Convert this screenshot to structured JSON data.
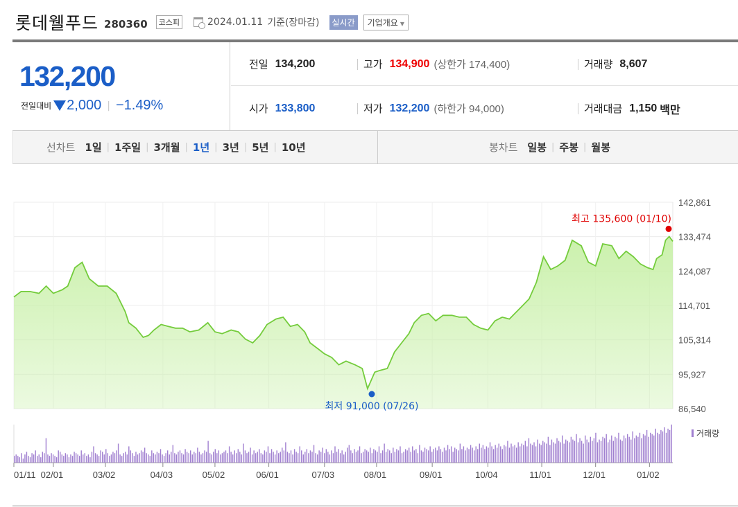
{
  "header": {
    "company": "롯데웰푸드",
    "code": "280360",
    "market": "코스피",
    "date": "2024.01.11",
    "date_suffix": "기준(장마감)",
    "realtime": "실시간",
    "overview": "기업개요"
  },
  "quote": {
    "price": "132,200",
    "change_label": "전일대비",
    "change": "2,000",
    "change_pct": "−1.49%",
    "prev_close_label": "전일",
    "prev_close": "134,200",
    "high_label": "고가",
    "high": "134,900",
    "upper_limit": "(상한가 174,400)",
    "volume_label": "거래량",
    "volume": "8,607",
    "open_label": "시가",
    "open": "133,800",
    "low_label": "저가",
    "low": "132,200",
    "lower_limit": "(하한가 94,000)",
    "amount_label": "거래대금",
    "amount": "1,150",
    "amount_unit": "백만",
    "colors": {
      "up": "#e00000",
      "down": "#1b5ec7"
    }
  },
  "tabs": {
    "line_title": "선차트",
    "line_periods": [
      "1일",
      "1주일",
      "3개월",
      "1년",
      "3년",
      "5년",
      "10년"
    ],
    "active_period": "1년",
    "candle_title": "봉차트",
    "candle_periods": [
      "일봉",
      "주봉",
      "월봉"
    ]
  },
  "chart_data": {
    "type": "area",
    "y_ticks": [
      "142,861",
      "133,474",
      "124,087",
      "114,701",
      "105,314",
      "95,927",
      "86,540"
    ],
    "ylim": [
      86540,
      142861
    ],
    "x_ticks": [
      "01/11",
      "02/01",
      "03/02",
      "04/03",
      "05/02",
      "06/01",
      "07/03",
      "08/01",
      "09/01",
      "10/04",
      "11/01",
      "12/01",
      "01/02"
    ],
    "high_label": "최고 135,600 (01/10)",
    "low_label": "최저 91,000 (07/26)",
    "volume_label": "거래량",
    "line_color": "#74cc3c",
    "fill_color": "#c8f0a8",
    "volume_color": "#a07fd0",
    "high_color": "#e00000",
    "low_color": "#1b5ec7",
    "price_points": [
      [
        0,
        117000
      ],
      [
        4,
        118500
      ],
      [
        9,
        118500
      ],
      [
        14,
        118000
      ],
      [
        18,
        120000
      ],
      [
        22,
        118000
      ],
      [
        27,
        119000
      ],
      [
        30,
        120000
      ],
      [
        34,
        125000
      ],
      [
        38,
        126500
      ],
      [
        42,
        122000
      ],
      [
        47,
        120000
      ],
      [
        52,
        120000
      ],
      [
        57,
        118000
      ],
      [
        62,
        113000
      ],
      [
        64,
        110000
      ],
      [
        68,
        108500
      ],
      [
        72,
        106000
      ],
      [
        75,
        106500
      ],
      [
        78,
        108000
      ],
      [
        82,
        109500
      ],
      [
        86,
        109000
      ],
      [
        90,
        108500
      ],
      [
        94,
        108500
      ],
      [
        98,
        107500
      ],
      [
        103,
        108000
      ],
      [
        108,
        110000
      ],
      [
        112,
        107500
      ],
      [
        116,
        107000
      ],
      [
        121,
        108000
      ],
      [
        125,
        107500
      ],
      [
        129,
        105500
      ],
      [
        133,
        104500
      ],
      [
        137,
        106500
      ],
      [
        141,
        109500
      ],
      [
        146,
        111000
      ],
      [
        150,
        111500
      ],
      [
        154,
        109000
      ],
      [
        158,
        109500
      ],
      [
        162,
        107500
      ],
      [
        165,
        104500
      ],
      [
        169,
        103000
      ],
      [
        173,
        101500
      ],
      [
        177,
        100500
      ],
      [
        181,
        98500
      ],
      [
        185,
        99500
      ],
      [
        190,
        98500
      ],
      [
        194,
        97500
      ],
      [
        197,
        92000
      ],
      [
        201,
        96500
      ],
      [
        204,
        97000
      ],
      [
        208,
        97500
      ],
      [
        212,
        102000
      ],
      [
        216,
        104500
      ],
      [
        220,
        107000
      ],
      [
        223,
        110000
      ],
      [
        227,
        112000
      ],
      [
        231,
        112500
      ],
      [
        235,
        110500
      ],
      [
        239,
        112000
      ],
      [
        244,
        112000
      ],
      [
        248,
        111500
      ],
      [
        252,
        111500
      ],
      [
        256,
        109500
      ],
      [
        260,
        108500
      ],
      [
        264,
        108000
      ],
      [
        268,
        110500
      ],
      [
        272,
        111500
      ],
      [
        276,
        111000
      ],
      [
        279,
        112500
      ],
      [
        283,
        114500
      ],
      [
        287,
        116500
      ],
      [
        291,
        121000
      ],
      [
        295,
        128000
      ],
      [
        299,
        124500
      ],
      [
        303,
        125500
      ],
      [
        307,
        127000
      ],
      [
        311,
        132500
      ],
      [
        316,
        131000
      ],
      [
        320,
        126500
      ],
      [
        324,
        125500
      ],
      [
        328,
        131500
      ],
      [
        333,
        131000
      ],
      [
        337,
        127500
      ],
      [
        341,
        129500
      ],
      [
        345,
        128000
      ],
      [
        349,
        126000
      ],
      [
        353,
        125000
      ],
      [
        356,
        124500
      ],
      [
        358,
        127500
      ],
      [
        361,
        128500
      ],
      [
        363,
        132500
      ],
      [
        365,
        133500
      ],
      [
        367,
        132200
      ]
    ],
    "price_last_index": 367,
    "volume_values": [
      5,
      6,
      5,
      4,
      7,
      3,
      6,
      8,
      5,
      4,
      7,
      6,
      9,
      5,
      6,
      4,
      8,
      7,
      18,
      6,
      5,
      7,
      6,
      5,
      4,
      9,
      8,
      6,
      5,
      7,
      6,
      4,
      6,
      5,
      8,
      7,
      6,
      5,
      9,
      6,
      7,
      5,
      6,
      4,
      8,
      12,
      7,
      6,
      5,
      9,
      8,
      6,
      10,
      7,
      5,
      6,
      8,
      7,
      9,
      14,
      6,
      5,
      7,
      8,
      6,
      12,
      9,
      7,
      5,
      8,
      6,
      7,
      9,
      8,
      11,
      7,
      6,
      5,
      9,
      7,
      6,
      8,
      7,
      10,
      6,
      5,
      7,
      9,
      6,
      8,
      13,
      7,
      6,
      8,
      9,
      7,
      6,
      10,
      8,
      7,
      9,
      6,
      8,
      7,
      11,
      8,
      6,
      7,
      9,
      8,
      16,
      7,
      6,
      8,
      10,
      7,
      9,
      6,
      7,
      8,
      9,
      7,
      12,
      8,
      6,
      9,
      7,
      10,
      8,
      6,
      14,
      9,
      7,
      8,
      11,
      6,
      9,
      7,
      8,
      10,
      7,
      6,
      9,
      8,
      12,
      7,
      10,
      8,
      6,
      9,
      7,
      8,
      11,
      9,
      15,
      8,
      7,
      9,
      6,
      10,
      8,
      7,
      12,
      9,
      6,
      8,
      10,
      7,
      9,
      8,
      13,
      7,
      6,
      9,
      8,
      11,
      7,
      10,
      8,
      6,
      9,
      7,
      12,
      8,
      10,
      7,
      9,
      6,
      8,
      11,
      13,
      9,
      7,
      10,
      8,
      9,
      12,
      7,
      8,
      10,
      9,
      8,
      11,
      7,
      10,
      9,
      8,
      12,
      7,
      9,
      14,
      8,
      10,
      9,
      7,
      11,
      8,
      10,
      9,
      12,
      7,
      8,
      10,
      9,
      11,
      8,
      12,
      9,
      10,
      7,
      13,
      9,
      8,
      11,
      10,
      9,
      12,
      8,
      10,
      11,
      9,
      12,
      10,
      8,
      11,
      9,
      13,
      10,
      12,
      8,
      11,
      10,
      9,
      14,
      10,
      12,
      9,
      11,
      10,
      13,
      11,
      9,
      12,
      10,
      14,
      11,
      13,
      10,
      12,
      11,
      15,
      12,
      10,
      13,
      11,
      14,
      12,
      10,
      13,
      12,
      16,
      11,
      14,
      12,
      13,
      11,
      15,
      12,
      14,
      13,
      16,
      12,
      18,
      14,
      13,
      15,
      12,
      17,
      14,
      13,
      16,
      15,
      14,
      19,
      13,
      17,
      15,
      14,
      18,
      16,
      15,
      20,
      14,
      17,
      16,
      15,
      19,
      17,
      16,
      21,
      15,
      18,
      16,
      14,
      20,
      17,
      15,
      19,
      16,
      18,
      22,
      15,
      17,
      16,
      19,
      18,
      21,
      15,
      17,
      20,
      16,
      19,
      18,
      22,
      17,
      16,
      20,
      18,
      21,
      19,
      17,
      23,
      18,
      20,
      19,
      22,
      18,
      21,
      20,
      24,
      19,
      22,
      21,
      20,
      25,
      22,
      21,
      24,
      23,
      26,
      22,
      25,
      24,
      28
    ]
  }
}
